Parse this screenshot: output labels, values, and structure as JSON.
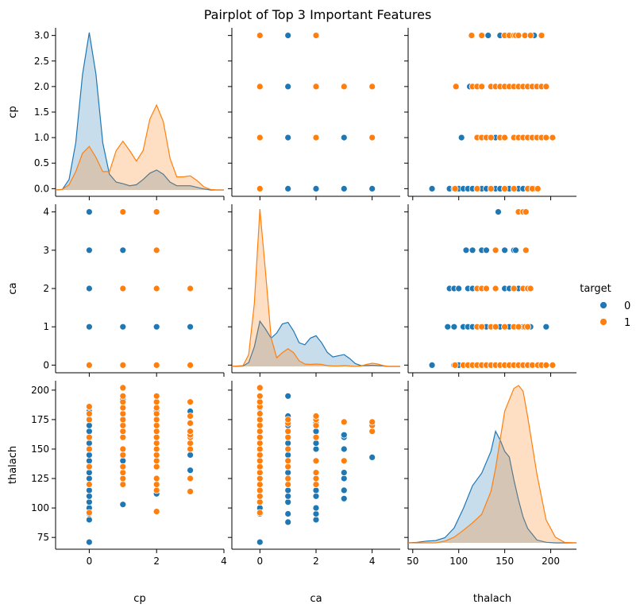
{
  "chart_data": {
    "type": "scatter",
    "title": "Pairplot of Top 3 Important Features",
    "variables": [
      "cp",
      "ca",
      "thalach"
    ],
    "hue": "target",
    "legend": {
      "title": "target",
      "placement": "right",
      "entries": [
        "0",
        "1"
      ]
    },
    "colors": {
      "0": "#1f77b4",
      "1": "#ff7f0e"
    },
    "axes": {
      "cp": {
        "lim": [
          -1.0,
          4.0
        ],
        "ticks": [
          0,
          2,
          4
        ],
        "ytick_labels": [
          "0.0",
          "0.5",
          "1.0",
          "1.5",
          "2.0",
          "2.5",
          "3.0"
        ],
        "ylim": [
          -0.15,
          3.15
        ]
      },
      "ca": {
        "lim": [
          -0.2,
          4.2
        ],
        "ticks": [
          0,
          1,
          2,
          3,
          4
        ],
        "xticks": [
          0,
          2,
          4
        ],
        "xlim": [
          -1.0,
          5.0
        ]
      },
      "thalach": {
        "lim": [
          65,
          208
        ],
        "ticks": [
          75,
          100,
          125,
          150,
          175,
          200
        ],
        "xticks": [
          50,
          100,
          150,
          200
        ],
        "xlim": [
          45,
          228
        ]
      }
    },
    "kde": {
      "cp": {
        "x": [
          -1.0,
          -0.8,
          -0.6,
          -0.4,
          -0.2,
          0.0,
          0.2,
          0.4,
          0.6,
          0.8,
          1.0,
          1.2,
          1.4,
          1.6,
          1.8,
          2.0,
          2.2,
          2.4,
          2.6,
          2.8,
          3.0,
          3.2,
          3.4,
          3.6,
          3.8,
          4.0
        ],
        "0": [
          0.0,
          0.01,
          0.2,
          0.9,
          2.2,
          3.0,
          2.2,
          0.9,
          0.3,
          0.15,
          0.12,
          0.08,
          0.1,
          0.2,
          0.32,
          0.38,
          0.3,
          0.15,
          0.08,
          0.08,
          0.08,
          0.05,
          0.02,
          0.0,
          0.0,
          0.0
        ],
        "1": [
          0.0,
          0.01,
          0.1,
          0.35,
          0.7,
          0.83,
          0.62,
          0.35,
          0.35,
          0.75,
          0.93,
          0.75,
          0.55,
          0.75,
          1.35,
          1.62,
          1.3,
          0.6,
          0.25,
          0.25,
          0.27,
          0.18,
          0.06,
          0.01,
          0.0,
          0.0
        ]
      },
      "ca": {
        "x": [
          -1.0,
          -0.6,
          -0.4,
          -0.2,
          0.0,
          0.2,
          0.4,
          0.6,
          0.8,
          1.0,
          1.2,
          1.4,
          1.6,
          1.8,
          2.0,
          2.2,
          2.4,
          2.6,
          2.8,
          3.0,
          3.2,
          3.4,
          3.6,
          3.8,
          4.0,
          4.2,
          4.4,
          4.6,
          5.0
        ],
        "0": [
          0.0,
          0.01,
          0.1,
          0.5,
          1.15,
          0.95,
          0.72,
          0.85,
          1.08,
          1.12,
          0.9,
          0.6,
          0.55,
          0.72,
          0.78,
          0.6,
          0.36,
          0.24,
          0.27,
          0.3,
          0.2,
          0.07,
          0.02,
          0.02,
          0.03,
          0.02,
          0.01,
          0.0,
          0.0
        ],
        "1": [
          0.0,
          0.02,
          0.3,
          1.6,
          4.0,
          2.4,
          0.72,
          0.22,
          0.35,
          0.45,
          0.35,
          0.14,
          0.06,
          0.05,
          0.06,
          0.05,
          0.02,
          0.01,
          0.01,
          0.02,
          0.01,
          0.0,
          0.01,
          0.05,
          0.08,
          0.06,
          0.02,
          0.0,
          0.0
        ]
      },
      "thalach": {
        "x": [
          45,
          55,
          65,
          75,
          85,
          95,
          105,
          115,
          125,
          135,
          140,
          145,
          150,
          155,
          160,
          165,
          170,
          175,
          185,
          195,
          205,
          215,
          228
        ],
        "0": [
          0.0,
          0.001,
          0.003,
          0.004,
          0.009,
          0.026,
          0.06,
          0.1,
          0.122,
          0.16,
          0.195,
          0.18,
          0.16,
          0.15,
          0.11,
          0.075,
          0.045,
          0.025,
          0.005,
          0.001,
          0.0,
          0.0,
          0.0
        ],
        "1": [
          0.0,
          0.0,
          0.0,
          0.0,
          0.003,
          0.01,
          0.022,
          0.035,
          0.05,
          0.09,
          0.13,
          0.18,
          0.23,
          0.25,
          0.27,
          0.275,
          0.265,
          0.22,
          0.12,
          0.04,
          0.01,
          0.001,
          0.0
        ]
      }
    },
    "points": {
      "cp_ca": {
        "0": [
          [
            0,
            0
          ],
          [
            0,
            1
          ],
          [
            0,
            2
          ],
          [
            0,
            3
          ],
          [
            0,
            4
          ],
          [
            1,
            0
          ],
          [
            1,
            1
          ],
          [
            1,
            2
          ],
          [
            1,
            3
          ],
          [
            2,
            0
          ],
          [
            2,
            1
          ],
          [
            2,
            2
          ],
          [
            2,
            3
          ],
          [
            2,
            4
          ],
          [
            3,
            0
          ],
          [
            3,
            1
          ]
        ],
        "1": [
          [
            0,
            0
          ],
          [
            1,
            0
          ],
          [
            1,
            2
          ],
          [
            1,
            4
          ],
          [
            2,
            0
          ],
          [
            2,
            2
          ],
          [
            2,
            3
          ],
          [
            2,
            4
          ],
          [
            3,
            0
          ],
          [
            3,
            2
          ]
        ]
      },
      "thalach_cp": {
        "0": [
          71,
          90,
          95,
          97,
          105,
          108,
          112,
          115,
          120,
          125,
          130,
          132,
          135,
          140,
          145,
          150,
          155,
          160,
          165,
          170,
          175,
          180,
          182,
          103,
          145,
          150,
          160,
          170,
          192,
          97,
          115,
          125,
          130,
          140,
          150,
          160,
          170,
          185,
          125,
          132,
          145,
          160,
          182
        ],
        "1": [
          96,
          110,
          115,
          120,
          125,
          130,
          140,
          145,
          150,
          155,
          160,
          165,
          170,
          175,
          180,
          186,
          120,
          125,
          130,
          150,
          160,
          165,
          175,
          185,
          192,
          202,
          97,
          115,
          125,
          140,
          150,
          160,
          170,
          180,
          190,
          195,
          115,
          125,
          145,
          150,
          155,
          162,
          168,
          175,
          190
        ]
      },
      "thalach_ca": {
        "0": [
          71,
          95,
          103,
          110,
          115,
          120,
          125,
          130,
          135,
          140,
          145,
          150,
          155,
          160,
          165,
          170,
          175,
          180,
          88,
          100,
          108,
          115,
          120,
          125,
          130,
          140,
          150,
          160,
          170,
          178,
          195,
          90,
          95,
          100,
          110,
          120,
          130,
          140,
          150,
          155,
          165,
          172,
          108,
          115,
          125,
          130,
          140,
          150,
          162,
          173,
          143
        ],
        "1": [
          96,
          110,
          115,
          120,
          125,
          130,
          140,
          145,
          150,
          155,
          160,
          165,
          170,
          175,
          180,
          186,
          190,
          195,
          202,
          125,
          140,
          150,
          160,
          172,
          175,
          120,
          130,
          140,
          175,
          178,
          140,
          173,
          165,
          170,
          173
        ]
      },
      "cp_vs_thalach_rows": {
        "0": {
          "0": [
            71,
            90,
            95,
            100,
            105,
            110,
            115,
            120,
            125,
            130,
            135,
            140,
            145,
            150,
            155,
            160,
            165,
            170,
            175,
            182
          ],
          "1": [
            103,
            140,
            150,
            160,
            170,
            175,
            192
          ],
          "2": [
            112,
            120,
            125,
            135,
            140,
            150,
            160,
            165,
            170,
            182
          ],
          "3": [
            125,
            132,
            145,
            155,
            165,
            182
          ]
        },
        "1": {
          "0": [
            96,
            120,
            135,
            150,
            160,
            175,
            180,
            186
          ],
          "1": [
            120,
            125,
            130,
            135,
            145,
            150,
            160,
            165,
            170,
            175,
            180,
            185,
            190,
            195,
            202
          ],
          "2": [
            97,
            115,
            120,
            125,
            135,
            140,
            145,
            150,
            155,
            160,
            165,
            170,
            175,
            180,
            185,
            190,
            195
          ],
          "3": [
            114,
            125,
            150,
            155,
            160,
            162,
            165,
            172,
            178,
            190
          ]
        }
      },
      "ca_vs_thalach_rows": {
        "0": {
          "0": [
            71,
            95,
            100,
            105,
            110,
            115,
            120,
            125,
            130,
            135,
            140,
            145,
            150,
            155,
            160,
            165,
            170,
            175,
            180,
            185
          ],
          "1": [
            88,
            95,
            105,
            110,
            115,
            120,
            125,
            130,
            135,
            140,
            145,
            150,
            155,
            160,
            165,
            170,
            178,
            195
          ],
          "2": [
            90,
            95,
            100,
            110,
            115,
            120,
            130,
            140,
            150,
            155,
            160,
            165,
            172,
            176
          ],
          "3": [
            108,
            115,
            125,
            130,
            140,
            150,
            160,
            162
          ],
          "4": [
            143
          ]
        },
        "1": {
          "0": [
            96,
            105,
            110,
            115,
            120,
            125,
            130,
            135,
            140,
            145,
            150,
            155,
            160,
            165,
            170,
            175,
            180,
            186,
            190,
            195,
            202
          ],
          "1": [
            120,
            125,
            135,
            140,
            150,
            160,
            165,
            172,
            175
          ],
          "2": [
            120,
            125,
            130,
            140,
            160,
            170,
            175,
            178
          ],
          "3": [
            140,
            173
          ],
          "4": [
            165,
            170,
            173
          ]
        }
      }
    }
  }
}
